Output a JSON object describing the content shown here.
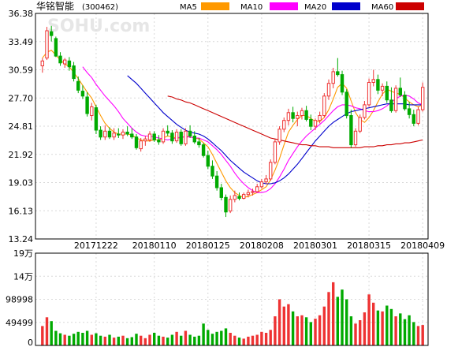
{
  "chart_data": {
    "type": "candlestick",
    "title": "华铭智能",
    "code": "(300462)",
    "watermark": "SOHU.com",
    "price_axis": {
      "ticks": [
        "36.38",
        "33.49",
        "30.59",
        "27.70",
        "24.81",
        "21.92",
        "19.03",
        "16.13",
        "13.24"
      ],
      "ylim": [
        13.24,
        36.38
      ]
    },
    "volume_axis": {
      "ticks": [
        "19万",
        "14万",
        "98998",
        "49499",
        "0"
      ],
      "ylim": [
        0,
        190000
      ]
    },
    "x_ticks": [
      "20171222",
      "20180110",
      "20180125",
      "20180208",
      "20180301",
      "20180315",
      "20180409"
    ],
    "x_tick_index": [
      12,
      25,
      37,
      49,
      61,
      73,
      85
    ],
    "legend": [
      {
        "name": "MA5",
        "color": "#ff9900"
      },
      {
        "name": "MA10",
        "color": "#ff00ff"
      },
      {
        "name": "MA20",
        "color": "#0000cc"
      },
      {
        "name": "MA60",
        "color": "#cc0000"
      }
    ],
    "colors": {
      "up": "#ee3333",
      "down": "#00aa00"
    },
    "candles": [
      [
        31.0,
        31.8,
        30.3,
        31.5
      ],
      [
        31.8,
        35.0,
        31.6,
        34.6
      ],
      [
        34.5,
        35.1,
        33.5,
        34.1
      ],
      [
        33.8,
        34.0,
        31.9,
        32.0
      ],
      [
        32.0,
        32.4,
        31.0,
        31.3
      ],
      [
        31.2,
        31.8,
        30.8,
        31.6
      ],
      [
        31.5,
        31.9,
        30.5,
        30.9
      ],
      [
        31.0,
        31.4,
        29.4,
        29.7
      ],
      [
        29.4,
        29.9,
        28.2,
        28.5
      ],
      [
        28.4,
        29.0,
        27.6,
        27.9
      ],
      [
        27.8,
        28.3,
        25.8,
        26.1
      ],
      [
        25.9,
        27.2,
        25.4,
        26.8
      ],
      [
        26.7,
        27.0,
        24.0,
        24.4
      ],
      [
        24.4,
        24.8,
        23.4,
        23.7
      ],
      [
        23.7,
        24.9,
        23.4,
        24.3
      ],
      [
        24.3,
        24.7,
        23.5,
        23.7
      ],
      [
        23.7,
        24.6,
        23.4,
        24.1
      ],
      [
        24.0,
        24.6,
        23.6,
        23.9
      ],
      [
        23.9,
        24.5,
        23.5,
        24.2
      ],
      [
        24.2,
        24.8,
        23.8,
        24.0
      ],
      [
        24.0,
        24.6,
        23.5,
        23.7
      ],
      [
        23.7,
        24.0,
        22.4,
        22.6
      ],
      [
        22.5,
        23.6,
        22.2,
        23.3
      ],
      [
        23.3,
        23.8,
        22.8,
        23.5
      ],
      [
        23.4,
        24.3,
        23.2,
        24.0
      ],
      [
        24.0,
        24.3,
        23.2,
        23.4
      ],
      [
        23.4,
        23.9,
        22.9,
        23.2
      ],
      [
        23.2,
        24.6,
        23.0,
        24.3
      ],
      [
        24.3,
        24.9,
        23.8,
        24.1
      ],
      [
        24.1,
        24.4,
        23.0,
        23.3
      ],
      [
        23.3,
        24.5,
        23.1,
        24.2
      ],
      [
        24.2,
        24.5,
        22.8,
        23.0
      ],
      [
        23.0,
        24.6,
        22.8,
        24.3
      ],
      [
        24.3,
        24.9,
        23.6,
        23.8
      ],
      [
        23.8,
        24.3,
        23.0,
        23.2
      ],
      [
        23.2,
        23.6,
        22.6,
        22.9
      ],
      [
        22.9,
        23.1,
        21.6,
        21.8
      ],
      [
        21.8,
        22.3,
        20.4,
        20.7
      ],
      [
        20.7,
        21.3,
        19.4,
        19.7
      ],
      [
        19.7,
        20.2,
        18.2,
        18.5
      ],
      [
        18.5,
        18.9,
        17.2,
        17.5
      ],
      [
        17.5,
        17.8,
        15.5,
        16.0
      ],
      [
        16.1,
        17.7,
        15.9,
        17.3
      ],
      [
        17.3,
        18.2,
        17.0,
        17.7
      ],
      [
        17.6,
        18.0,
        17.2,
        17.4
      ],
      [
        17.4,
        18.0,
        17.3,
        17.8
      ],
      [
        17.8,
        18.3,
        17.5,
        18.0
      ],
      [
        18.0,
        18.4,
        17.7,
        18.1
      ],
      [
        18.1,
        18.9,
        18.0,
        18.6
      ],
      [
        18.6,
        19.4,
        18.4,
        19.1
      ],
      [
        19.1,
        19.8,
        18.9,
        19.4
      ],
      [
        19.4,
        21.4,
        19.2,
        21.1
      ],
      [
        21.1,
        23.5,
        20.9,
        23.2
      ],
      [
        23.2,
        24.8,
        22.9,
        24.5
      ],
      [
        24.5,
        25.7,
        24.2,
        25.4
      ],
      [
        25.4,
        26.6,
        24.9,
        26.2
      ],
      [
        26.2,
        26.8,
        25.2,
        25.6
      ],
      [
        25.6,
        26.3,
        24.8,
        25.9
      ],
      [
        25.9,
        26.7,
        25.5,
        26.4
      ],
      [
        26.4,
        26.9,
        25.3,
        25.5
      ],
      [
        25.5,
        26.0,
        24.4,
        24.8
      ],
      [
        24.8,
        25.6,
        24.4,
        25.4
      ],
      [
        25.4,
        26.3,
        25.1,
        25.9
      ],
      [
        25.9,
        28.2,
        25.7,
        27.9
      ],
      [
        27.9,
        29.6,
        27.5,
        29.2
      ],
      [
        29.2,
        30.8,
        28.7,
        30.4
      ],
      [
        30.4,
        31.8,
        29.9,
        30.1
      ],
      [
        30.1,
        30.5,
        28.0,
        28.3
      ],
      [
        28.3,
        28.6,
        25.6,
        25.9
      ],
      [
        25.9,
        26.5,
        22.6,
        22.9
      ],
      [
        22.9,
        24.6,
        22.7,
        24.3
      ],
      [
        24.3,
        26.0,
        24.1,
        25.7
      ],
      [
        25.7,
        27.4,
        25.5,
        27.0
      ],
      [
        27.0,
        29.7,
        26.8,
        29.3
      ],
      [
        29.3,
        30.6,
        28.9,
        29.6
      ],
      [
        29.6,
        30.1,
        28.1,
        28.5
      ],
      [
        28.5,
        29.2,
        27.9,
        28.9
      ],
      [
        28.9,
        29.4,
        27.2,
        27.5
      ],
      [
        27.5,
        28.8,
        26.2,
        26.4
      ],
      [
        26.4,
        29.0,
        26.2,
        28.7
      ],
      [
        28.7,
        29.8,
        27.8,
        28.0
      ],
      [
        28.0,
        28.4,
        26.4,
        26.6
      ],
      [
        26.6,
        27.3,
        25.6,
        26.0
      ],
      [
        26.0,
        26.5,
        24.8,
        25.1
      ],
      [
        25.1,
        26.8,
        24.9,
        26.5
      ],
      [
        26.5,
        29.3,
        26.3,
        28.8
      ]
    ],
    "volumes": [
      40000,
      58000,
      50000,
      30000,
      25000,
      22000,
      20000,
      24000,
      28000,
      26000,
      30000,
      22000,
      25000,
      20000,
      18000,
      22000,
      16000,
      18000,
      20000,
      15000,
      17000,
      24000,
      20000,
      15000,
      22000,
      26000,
      20000,
      18000,
      16000,
      22000,
      28000,
      20000,
      30000,
      22000,
      18000,
      20000,
      45000,
      32000,
      24000,
      28000,
      30000,
      35000,
      26000,
      20000,
      16000,
      14000,
      18000,
      20000,
      22000,
      28000,
      26000,
      32000,
      60000,
      95000,
      80000,
      85000,
      70000,
      60000,
      62000,
      58000,
      48000,
      55000,
      62000,
      80000,
      110000,
      130000,
      100000,
      115000,
      95000,
      60000,
      45000,
      52000,
      68000,
      105000,
      88000,
      72000,
      70000,
      82000,
      75000,
      60000,
      66000,
      54000,
      62000,
      48000,
      40000,
      42000
    ],
    "ma": {
      "MA5": [
        31.8,
        32.4,
        32.6,
        32.1,
        31.6,
        31.2,
        30.9,
        30.3,
        29.7,
        29.0,
        28.3,
        27.7,
        26.8,
        25.9,
        25.1,
        24.6,
        24.2,
        24.0,
        24.0,
        24.0,
        23.9,
        23.6,
        23.4,
        23.3,
        23.3,
        23.4,
        23.4,
        23.6,
        23.8,
        23.7,
        23.6,
        23.6,
        23.8,
        23.7,
        23.6,
        23.5,
        23.1,
        22.7,
        21.9,
        21.0,
        20.1,
        19.2,
        18.5,
        18.0,
        17.7,
        17.5,
        17.6,
        17.8,
        18.0,
        18.3,
        18.6,
        19.3,
        20.3,
        21.5,
        22.9,
        24.2,
        24.9,
        25.5,
        25.9,
        25.9,
        25.6,
        25.3,
        25.3,
        25.7,
        26.5,
        27.6,
        28.8,
        29.2,
        28.7,
        27.4,
        26.2,
        25.5,
        25.2,
        25.7,
        26.4,
        27.3,
        28.1,
        28.6,
        28.4,
        28.2,
        28.1,
        27.7,
        27.3,
        27.0,
        26.8,
        27.0
      ],
      "MA10": [
        null,
        null,
        null,
        null,
        null,
        null,
        null,
        null,
        null,
        30.9,
        30.3,
        29.8,
        29.1,
        28.5,
        27.9,
        27.4,
        26.9,
        26.3,
        25.6,
        25.1,
        24.6,
        24.2,
        23.9,
        23.8,
        23.8,
        23.7,
        23.6,
        23.5,
        23.4,
        23.5,
        23.6,
        23.7,
        23.7,
        23.7,
        23.6,
        23.6,
        23.4,
        23.2,
        22.8,
        22.4,
        21.9,
        21.3,
        20.7,
        20.0,
        19.4,
        18.9,
        18.5,
        18.2,
        18.0,
        18.0,
        18.1,
        18.4,
        18.9,
        19.6,
        20.4,
        21.3,
        22.0,
        22.7,
        23.3,
        23.8,
        24.2,
        24.6,
        25.0,
        25.4,
        25.9,
        26.4,
        26.8,
        27.0,
        27.0,
        26.9,
        26.7,
        26.6,
        26.4,
        26.3,
        26.3,
        26.4,
        26.6,
        26.9,
        27.3,
        27.6,
        27.9,
        28.0,
        27.9,
        27.6,
        27.2,
        27.0
      ],
      "MA20": [
        null,
        null,
        null,
        null,
        null,
        null,
        null,
        null,
        null,
        null,
        null,
        null,
        null,
        null,
        null,
        null,
        null,
        null,
        null,
        30.0,
        29.6,
        29.2,
        28.7,
        28.2,
        27.7,
        27.2,
        26.7,
        26.2,
        25.8,
        25.4,
        25.0,
        24.7,
        24.4,
        24.2,
        24.1,
        24.0,
        23.8,
        23.5,
        23.1,
        22.7,
        22.3,
        21.8,
        21.3,
        20.9,
        20.5,
        20.1,
        19.8,
        19.5,
        19.2,
        19.0,
        18.9,
        18.9,
        19.0,
        19.2,
        19.5,
        19.9,
        20.4,
        20.9,
        21.5,
        22.1,
        22.7,
        23.3,
        23.8,
        24.3,
        24.8,
        25.2,
        25.5,
        25.8,
        26.1,
        26.3,
        26.4,
        26.5,
        26.6,
        26.7,
        26.8,
        26.9,
        27.0,
        27.1,
        27.1,
        27.1,
        27.1,
        27.1,
        27.0,
        27.0,
        27.0,
        27.0
      ],
      "MA60": [
        null,
        null,
        null,
        null,
        null,
        null,
        null,
        null,
        null,
        null,
        null,
        null,
        null,
        null,
        null,
        null,
        null,
        null,
        null,
        null,
        null,
        null,
        null,
        null,
        null,
        null,
        null,
        null,
        27.9,
        27.8,
        27.6,
        27.5,
        27.3,
        27.2,
        27.0,
        26.8,
        26.6,
        26.4,
        26.2,
        26.0,
        25.8,
        25.6,
        25.4,
        25.2,
        25.0,
        24.8,
        24.6,
        24.4,
        24.2,
        24.0,
        23.8,
        23.6,
        23.5,
        23.4,
        23.3,
        23.2,
        23.1,
        23.0,
        22.9,
        22.9,
        22.8,
        22.8,
        22.7,
        22.7,
        22.7,
        22.6,
        22.6,
        22.6,
        22.6,
        22.6,
        22.6,
        22.6,
        22.7,
        22.7,
        22.7,
        22.8,
        22.8,
        22.9,
        22.9,
        23.0,
        23.0,
        23.1,
        23.1,
        23.2,
        23.3,
        23.4
      ]
    }
  }
}
